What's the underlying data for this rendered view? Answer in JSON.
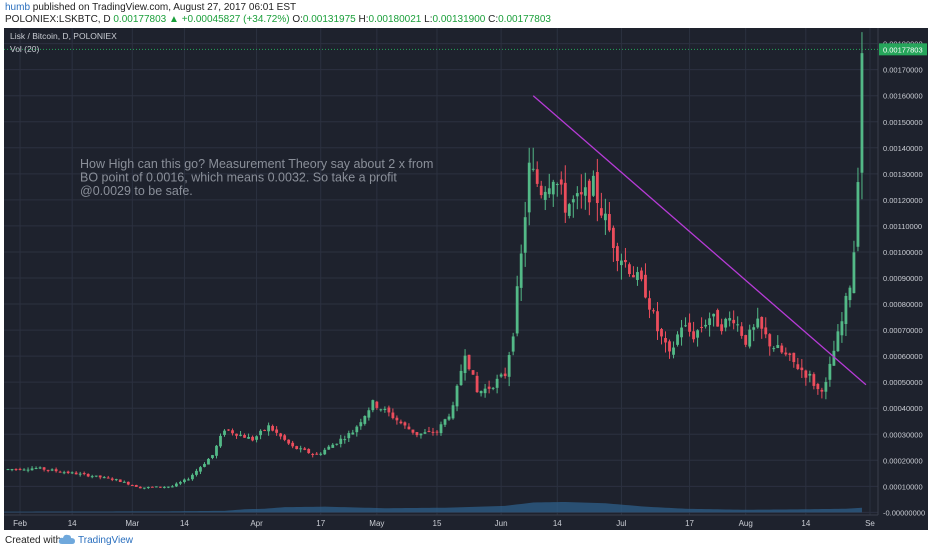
{
  "header": {
    "author": "humb",
    "published_text": "published on TradingView.com, August 27, 2017 06:01 EST",
    "symbol": "POLONIEX:LSKBTC, D",
    "price": "0.00177803",
    "arrow": "▲",
    "change": "+0.00045827 (+34.72%)",
    "ohlc": [
      {
        "label": "O:",
        "value": "0.00131975"
      },
      {
        "label": "H:",
        "value": "0.00180021"
      },
      {
        "label": "L:",
        "value": "0.00131900"
      },
      {
        "label": "C:",
        "value": "0.00177803"
      }
    ]
  },
  "footer": {
    "made_with": "Created with",
    "brand": "TradingView"
  },
  "colors": {
    "background": "#1e222d",
    "grid": "#2c3140",
    "up": "#53b987",
    "down": "#eb4d5c",
    "trendline": "#b63bd6",
    "volume": "#2e5f8a",
    "annotation": "#8a8f99",
    "axis_text": "#c9ccd3",
    "price_tag": "#26a65b"
  },
  "chart_data": {
    "type": "candlestick",
    "title": "Lisk / Bitcoin, D, POLONIEX",
    "volume_label": "Vol (20)",
    "annotation": [
      "How High can this go? Measurement Theory say about 2 x from",
      "BO point of 0.0016, which means 0.0032. So take a profit",
      "@0.0029 to be safe."
    ],
    "ylim": [
      -1e-05,
      0.00186
    ],
    "y_ticks": [
      "0.00180000",
      "0.00170000",
      "0.00160000",
      "0.00150000",
      "0.00140000",
      "0.00130000",
      "0.00120000",
      "0.00110000",
      "0.00100000",
      "0.00090000",
      "0.00080000",
      "0.00070000",
      "0.00060000",
      "0.00050000",
      "0.00040000",
      "0.00030000",
      "0.00020000",
      "0.00010000",
      "-0.00000000"
    ],
    "x_ticks": [
      "Feb",
      "14",
      "Mar",
      "14",
      "Apr",
      "17",
      "May",
      "15",
      "Jun",
      "14",
      "Jul",
      "17",
      "Aug",
      "14",
      "Se"
    ],
    "x_tick_days": [
      4,
      17,
      32,
      45,
      63,
      79,
      93,
      108,
      124,
      138,
      154,
      171,
      185,
      200,
      216
    ],
    "last_price_tag": "0.00177803",
    "trendline": {
      "start": {
        "day": 132,
        "price": 0.0016
      },
      "end": {
        "day": 215,
        "price": 0.00049
      }
    },
    "anchors": [
      [
        0,
        0.000165
      ],
      [
        8,
        0.00017
      ],
      [
        15,
        0.000155
      ],
      [
        22,
        0.00014
      ],
      [
        28,
        0.000125
      ],
      [
        34,
        9.5e-05
      ],
      [
        42,
        0.0001
      ],
      [
        46,
        0.00013
      ],
      [
        52,
        0.00022
      ],
      [
        55,
        0.00032
      ],
      [
        62,
        0.00028
      ],
      [
        66,
        0.00033
      ],
      [
        72,
        0.00025
      ],
      [
        78,
        0.00022
      ],
      [
        82,
        0.00026
      ],
      [
        87,
        0.00031
      ],
      [
        92,
        0.00042
      ],
      [
        96,
        0.00038
      ],
      [
        100,
        0.00033
      ],
      [
        103,
        0.0003
      ],
      [
        108,
        0.00031
      ],
      [
        112,
        0.0004
      ],
      [
        115,
        0.00062
      ],
      [
        118,
        0.00046
      ],
      [
        121,
        0.00048
      ],
      [
        125,
        0.00053
      ],
      [
        127,
        0.0007
      ],
      [
        129,
        0.00098
      ],
      [
        131,
        0.00132
      ],
      [
        134,
        0.00124
      ],
      [
        137,
        0.0013
      ],
      [
        140,
        0.00118
      ],
      [
        144,
        0.0012
      ],
      [
        147,
        0.00125
      ],
      [
        150,
        0.00112
      ],
      [
        153,
        0.001
      ],
      [
        156,
        0.00094
      ],
      [
        160,
        0.00085
      ],
      [
        163,
        0.0007
      ],
      [
        166,
        0.0006
      ],
      [
        169,
        0.00072
      ],
      [
        172,
        0.00068
      ],
      [
        176,
        0.00075
      ],
      [
        179,
        0.00072
      ],
      [
        182,
        0.00075
      ],
      [
        185,
        0.00066
      ],
      [
        188,
        0.00072
      ],
      [
        191,
        0.00065
      ],
      [
        195,
        0.0006
      ],
      [
        198,
        0.00056
      ],
      [
        201,
        0.00052
      ],
      [
        203,
        0.00047
      ],
      [
        205,
        0.00049
      ],
      [
        207,
        0.00062
      ],
      [
        209,
        0.00073
      ],
      [
        211,
        0.00088
      ],
      [
        212,
        0.00101
      ],
      [
        213,
        0.00131
      ],
      [
        214,
        0.00178
      ]
    ],
    "volume_profile": [
      [
        0,
        3e-06
      ],
      [
        40,
        4e-06
      ],
      [
        55,
        6e-06
      ],
      [
        60,
        1.2e-05
      ],
      [
        65,
        1.4e-05
      ],
      [
        70,
        2e-05
      ],
      [
        80,
        2.2e-05
      ],
      [
        95,
        1.6e-05
      ],
      [
        110,
        1.8e-05
      ],
      [
        125,
        2.5e-05
      ],
      [
        132,
        3.8e-05
      ],
      [
        140,
        4e-05
      ],
      [
        150,
        3.5e-05
      ],
      [
        160,
        2.2e-05
      ],
      [
        170,
        1.4e-05
      ],
      [
        185,
        1e-05
      ],
      [
        200,
        1.2e-05
      ],
      [
        210,
        1.4e-05
      ],
      [
        214,
        1.8e-05
      ]
    ]
  }
}
